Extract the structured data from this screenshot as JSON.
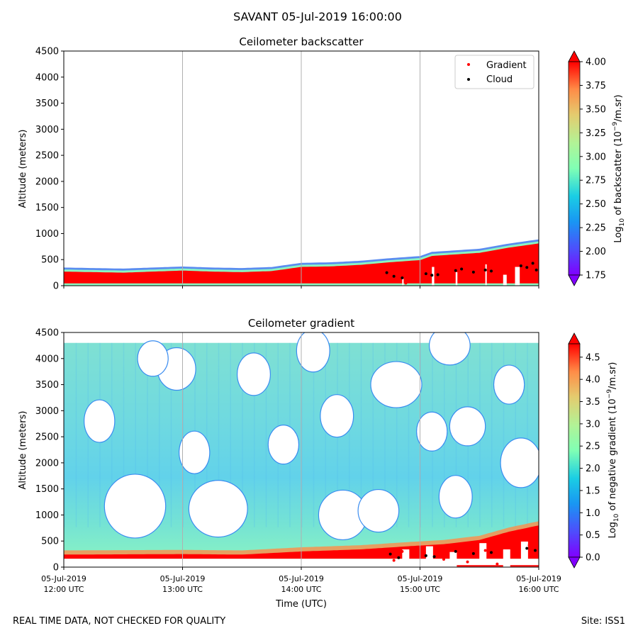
{
  "figure": {
    "suptitle": "SAVANT 05-Jul-2019 16:00:00",
    "footer_left": "REAL TIME DATA, NOT CHECKED FOR QUALITY",
    "footer_right": "Site: ISS1"
  },
  "chart_data": [
    {
      "type": "heatmap",
      "title": "Ceilometer backscatter",
      "xlabel": "",
      "ylabel": "Altitude (meters)",
      "ylim": [
        0,
        4500
      ],
      "yticks": [
        "0",
        "500",
        "1000",
        "1500",
        "2000",
        "2500",
        "3000",
        "3500",
        "4000",
        "4500"
      ],
      "xtick_labels": [],
      "xlim_hours": [
        12,
        16
      ],
      "grid": "vertical at hour ticks",
      "legend": {
        "position": "top-right",
        "entries": [
          {
            "label": "Gradient",
            "color": "#ff0000"
          },
          {
            "label": "Cloud",
            "color": "#000000"
          }
        ]
      },
      "colorbar": {
        "label_main": "Log",
        "label_sub": "10",
        "label_rest": " of backscatter (10",
        "label_sup": "−9",
        "label_end": "/m.sr)",
        "vmin": 1.75,
        "vmax": 4.0,
        "ticks": [
          "1.75",
          "2.00",
          "2.25",
          "2.50",
          "2.75",
          "3.00",
          "3.25",
          "3.50",
          "3.75",
          "4.00"
        ]
      },
      "layer_top_m": [
        [
          12.0,
          340
        ],
        [
          12.5,
          320
        ],
        [
          13.0,
          360
        ],
        [
          13.25,
          340
        ],
        [
          13.5,
          330
        ],
        [
          13.75,
          350
        ],
        [
          14.0,
          430
        ],
        [
          14.25,
          440
        ],
        [
          14.5,
          470
        ],
        [
          14.75,
          520
        ],
        [
          15.0,
          560
        ],
        [
          15.1,
          640
        ],
        [
          15.5,
          700
        ],
        [
          15.75,
          800
        ],
        [
          16.0,
          880
        ]
      ],
      "cloud_points": [
        [
          14.72,
          250
        ],
        [
          14.78,
          180
        ],
        [
          14.85,
          150
        ],
        [
          15.05,
          230
        ],
        [
          15.1,
          200
        ],
        [
          15.15,
          210
        ],
        [
          15.3,
          290
        ],
        [
          15.35,
          320
        ],
        [
          15.45,
          260
        ],
        [
          15.55,
          300
        ],
        [
          15.6,
          280
        ],
        [
          15.85,
          380
        ],
        [
          15.9,
          350
        ],
        [
          15.95,
          430
        ],
        [
          15.98,
          300
        ]
      ],
      "gradient_points": [
        [
          14.75,
          120
        ],
        [
          14.8,
          300
        ],
        [
          14.88,
          50
        ],
        [
          15.2,
          150
        ],
        [
          15.4,
          100
        ],
        [
          15.5,
          330
        ],
        [
          15.62,
          250
        ],
        [
          15.65,
          80
        ],
        [
          15.92,
          420
        ],
        [
          15.97,
          260
        ]
      ]
    },
    {
      "type": "heatmap",
      "title": "Ceilometer gradient",
      "xlabel": "Time (UTC)",
      "ylabel": "Altitude (meters)",
      "ylim": [
        0,
        4500
      ],
      "yticks": [
        "0",
        "500",
        "1000",
        "1500",
        "2000",
        "2500",
        "3000",
        "3500",
        "4000",
        "4500"
      ],
      "xticks": [
        {
          "h": 12,
          "line1": "05-Jul-2019",
          "line2": "12:00 UTC"
        },
        {
          "h": 13,
          "line1": "05-Jul-2019",
          "line2": "13:00 UTC"
        },
        {
          "h": 14,
          "line1": "05-Jul-2019",
          "line2": "14:00 UTC"
        },
        {
          "h": 15,
          "line1": "05-Jul-2019",
          "line2": "15:00 UTC"
        },
        {
          "h": 16,
          "line1": "05-Jul-2019",
          "line2": "16:00 UTC"
        }
      ],
      "xlim_hours": [
        12,
        16
      ],
      "grid": "vertical at hour ticks",
      "colorbar": {
        "label_main": "Log",
        "label_sub": "10",
        "label_rest": " of negative gradient (10",
        "label_sup": "−9",
        "label_end": "/m.sr)",
        "vmin": 0.0,
        "vmax": 4.8,
        "ticks": [
          "0.0",
          "0.5",
          "1.0",
          "1.5",
          "2.0",
          "2.5",
          "3.0",
          "3.5",
          "4.0",
          "4.5"
        ]
      },
      "data_top_m": 4300,
      "gaps_m": [
        [
          12.6,
          1170,
          12.0,
          2.4,
          0.7
        ],
        [
          13.3,
          1120,
          10.0,
          2.3,
          0.6
        ],
        [
          14.35,
          1000,
          5.0,
          1.9,
          0.5
        ],
        [
          14.65,
          1080,
          4.0,
          1.6,
          0.4
        ],
        [
          14.8,
          3500,
          14.0,
          2.0,
          0.45
        ],
        [
          15.25,
          4250,
          12.0,
          1.6,
          0.35
        ],
        [
          15.3,
          1350,
          4.0,
          1.3,
          0.4
        ],
        [
          15.4,
          2700,
          6.0,
          1.4,
          0.35
        ],
        [
          15.85,
          2000,
          9.0,
          1.6,
          0.5
        ],
        [
          12.95,
          3800,
          9.0,
          1.5,
          0.4
        ],
        [
          13.6,
          3700,
          7.0,
          1.3,
          0.4
        ],
        [
          14.3,
          2900,
          6.0,
          1.3,
          0.4
        ],
        [
          12.3,
          2800,
          5.0,
          1.2,
          0.4
        ],
        [
          13.1,
          2200,
          5.0,
          1.2,
          0.4
        ],
        [
          14.1,
          4150,
          6.0,
          1.3,
          0.4
        ],
        [
          15.75,
          3500,
          6.0,
          1.2,
          0.35
        ],
        [
          12.75,
          4000,
          6.0,
          1.2,
          0.3
        ],
        [
          13.85,
          2350,
          5.0,
          1.2,
          0.35
        ],
        [
          15.1,
          2600,
          5.0,
          1.2,
          0.35
        ]
      ],
      "cloud_points": [
        [
          14.75,
          250
        ],
        [
          14.82,
          180
        ],
        [
          15.05,
          220
        ],
        [
          15.12,
          200
        ],
        [
          15.3,
          300
        ],
        [
          15.45,
          260
        ],
        [
          15.6,
          280
        ],
        [
          15.9,
          360
        ],
        [
          15.97,
          320
        ]
      ],
      "gradient_points": [
        [
          14.78,
          130
        ],
        [
          14.85,
          300
        ],
        [
          15.2,
          150
        ],
        [
          15.4,
          100
        ],
        [
          15.55,
          320
        ],
        [
          15.65,
          60
        ],
        [
          15.92,
          420
        ]
      ]
    }
  ]
}
